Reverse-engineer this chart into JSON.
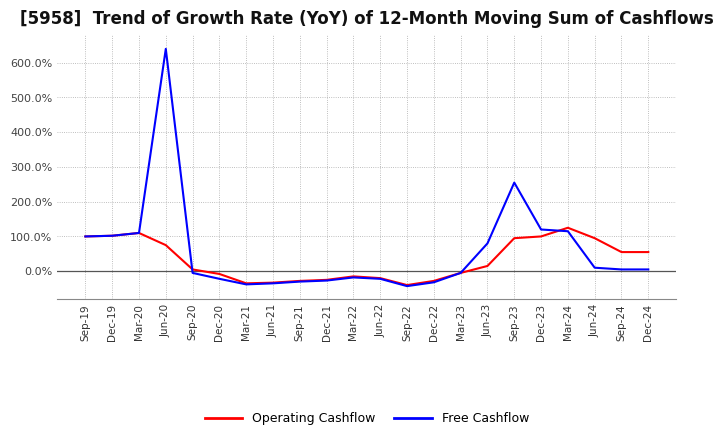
{
  "title": "[5958]  Trend of Growth Rate (YoY) of 12-Month Moving Sum of Cashflows",
  "title_fontsize": 12,
  "background_color": "#ffffff",
  "plot_bg_color": "#ffffff",
  "grid_color": "#aaaaaa",
  "line_color_operating": "#ff0000",
  "line_color_free": "#0000ff",
  "legend_labels": [
    "Operating Cashflow",
    "Free Cashflow"
  ],
  "x_labels": [
    "Sep-19",
    "Dec-19",
    "Mar-20",
    "Jun-20",
    "Sep-20",
    "Dec-20",
    "Mar-21",
    "Jun-21",
    "Sep-21",
    "Dec-21",
    "Mar-22",
    "Jun-22",
    "Sep-22",
    "Dec-22",
    "Mar-23",
    "Jun-23",
    "Sep-23",
    "Dec-23",
    "Mar-24",
    "Jun-24",
    "Sep-24",
    "Dec-24"
  ],
  "operating_cashflow": [
    100,
    102,
    110,
    75,
    5,
    -8,
    -35,
    -33,
    -28,
    -25,
    -15,
    -20,
    -40,
    -28,
    -5,
    15,
    95,
    100,
    125,
    95,
    55,
    55
  ],
  "free_cashflow": [
    100,
    102,
    110,
    640,
    -5,
    -22,
    -38,
    -35,
    -30,
    -27,
    -18,
    -22,
    -43,
    -32,
    -5,
    80,
    255,
    120,
    115,
    10,
    5,
    5
  ]
}
